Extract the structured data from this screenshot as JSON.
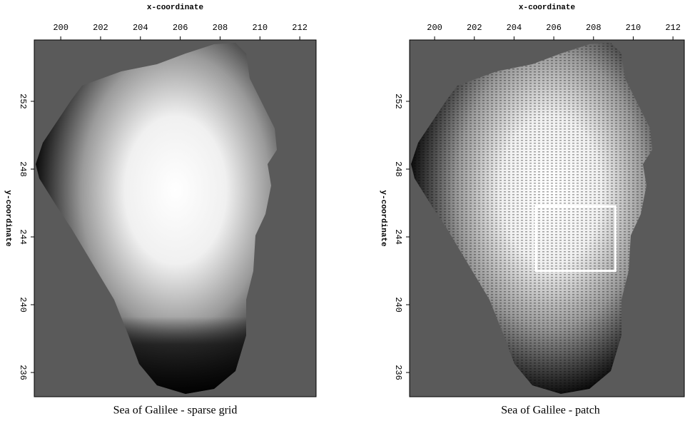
{
  "chart_data": [
    {
      "type": "image",
      "title": "Sea of Galilee - sparse grid",
      "xlabel": "x-coordinate",
      "ylabel": "y-coordinate",
      "xlim": [
        198.67,
        212.82
      ],
      "ylim": [
        234.57,
        255.62
      ],
      "xticks": [
        200,
        202,
        204,
        206,
        208,
        210,
        212
      ],
      "yticks": [
        236,
        240,
        244,
        248,
        252
      ]
    },
    {
      "type": "image",
      "title": "Sea of Galilee - patch",
      "xlabel": "x-coordinate",
      "ylabel": "y-coordinate",
      "xlim": [
        198.74,
        212.57
      ],
      "ylim": [
        234.57,
        255.62
      ],
      "xticks": [
        200,
        202,
        204,
        206,
        208,
        210,
        212
      ],
      "yticks": [
        236,
        240,
        244,
        248,
        252
      ],
      "rectangle": {
        "x": [
          205.1,
          209.1
        ],
        "y": [
          242,
          245.8
        ],
        "color": "#ffffff"
      }
    }
  ]
}
